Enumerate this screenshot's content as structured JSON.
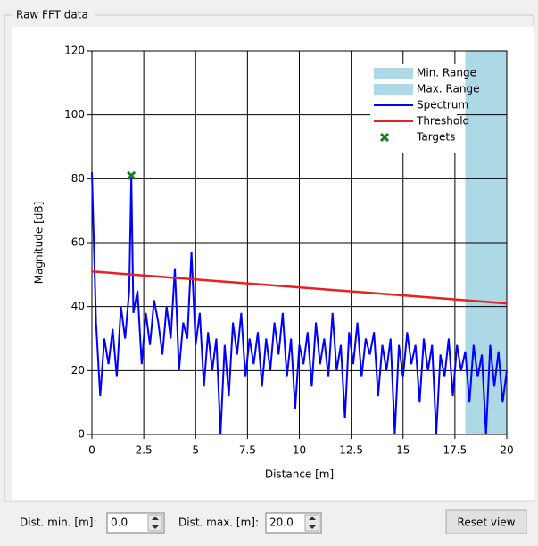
{
  "group_title": "Raw FFT data",
  "controls": {
    "dist_min_label": "Dist. min. [m]:",
    "dist_min_value": "0.0",
    "dist_max_label": "Dist. max. [m]:",
    "dist_max_value": "20.0",
    "reset_button": "Reset view"
  },
  "chart_data": {
    "type": "line",
    "x_label": "Distance [m]",
    "y_label": "Magnitude [dB]",
    "xlim": [
      0,
      20
    ],
    "ylim": [
      0,
      120
    ],
    "xticks": [
      0,
      2.5,
      5,
      7.5,
      10,
      12.5,
      15,
      17.5,
      20
    ],
    "yticks": [
      0,
      20,
      40,
      60,
      80,
      100,
      120
    ],
    "grid": true,
    "legend": "upper right",
    "ranges": [
      {
        "name": "Min. Range",
        "color": "#add8e6",
        "span": [
          0,
          0
        ]
      },
      {
        "name": "Max. Range",
        "color": "#add8e6",
        "span": [
          18,
          20
        ]
      }
    ],
    "series": [
      {
        "name": "Spectrum",
        "color": "#0000ff",
        "x": [
          0,
          0.2,
          0.4,
          0.6,
          0.8,
          1.0,
          1.2,
          1.4,
          1.6,
          1.8,
          1.9,
          2.0,
          2.2,
          2.4,
          2.6,
          2.8,
          3.0,
          3.2,
          3.4,
          3.6,
          3.8,
          4.0,
          4.2,
          4.4,
          4.6,
          4.8,
          5.0,
          5.2,
          5.4,
          5.6,
          5.8,
          6.0,
          6.2,
          6.4,
          6.6,
          6.8,
          7.0,
          7.2,
          7.4,
          7.6,
          7.8,
          8.0,
          8.2,
          8.4,
          8.6,
          8.8,
          9.0,
          9.2,
          9.4,
          9.6,
          9.8,
          10.0,
          10.2,
          10.4,
          10.6,
          10.8,
          11.0,
          11.2,
          11.4,
          11.6,
          11.8,
          12.0,
          12.2,
          12.4,
          12.6,
          12.8,
          13.0,
          13.2,
          13.4,
          13.6,
          13.8,
          14.0,
          14.2,
          14.4,
          14.6,
          14.8,
          15.0,
          15.2,
          15.4,
          15.6,
          15.8,
          16.0,
          16.2,
          16.4,
          16.6,
          16.8,
          17.0,
          17.2,
          17.4,
          17.6,
          17.8,
          18.0,
          18.2,
          18.4,
          18.6,
          18.8,
          19.0,
          19.2,
          19.4,
          19.6,
          19.8,
          20.0
        ],
        "values": [
          82,
          35,
          12,
          30,
          22,
          33,
          18,
          40,
          30,
          45,
          81,
          38,
          45,
          22,
          38,
          28,
          42,
          35,
          25,
          40,
          30,
          52,
          20,
          35,
          30,
          57,
          28,
          38,
          15,
          32,
          20,
          30,
          0,
          28,
          12,
          35,
          25,
          38,
          18,
          30,
          22,
          32,
          15,
          30,
          20,
          35,
          25,
          38,
          18,
          30,
          8,
          28,
          22,
          32,
          15,
          35,
          22,
          30,
          18,
          38,
          20,
          28,
          5,
          32,
          22,
          35,
          18,
          30,
          25,
          32,
          12,
          28,
          20,
          30,
          0,
          28,
          18,
          32,
          22,
          28,
          10,
          30,
          20,
          28,
          0,
          25,
          18,
          30,
          12,
          28,
          20,
          26,
          10,
          28,
          18,
          25,
          0,
          28,
          15,
          26,
          10,
          20
        ]
      },
      {
        "name": "Threshold",
        "color": "#e8211e",
        "x": [
          0,
          20
        ],
        "values": [
          51,
          41
        ]
      },
      {
        "name": "Targets",
        "color": "#1e7b1e",
        "marker": "x",
        "x": [
          1.9
        ],
        "values": [
          81
        ]
      }
    ]
  }
}
